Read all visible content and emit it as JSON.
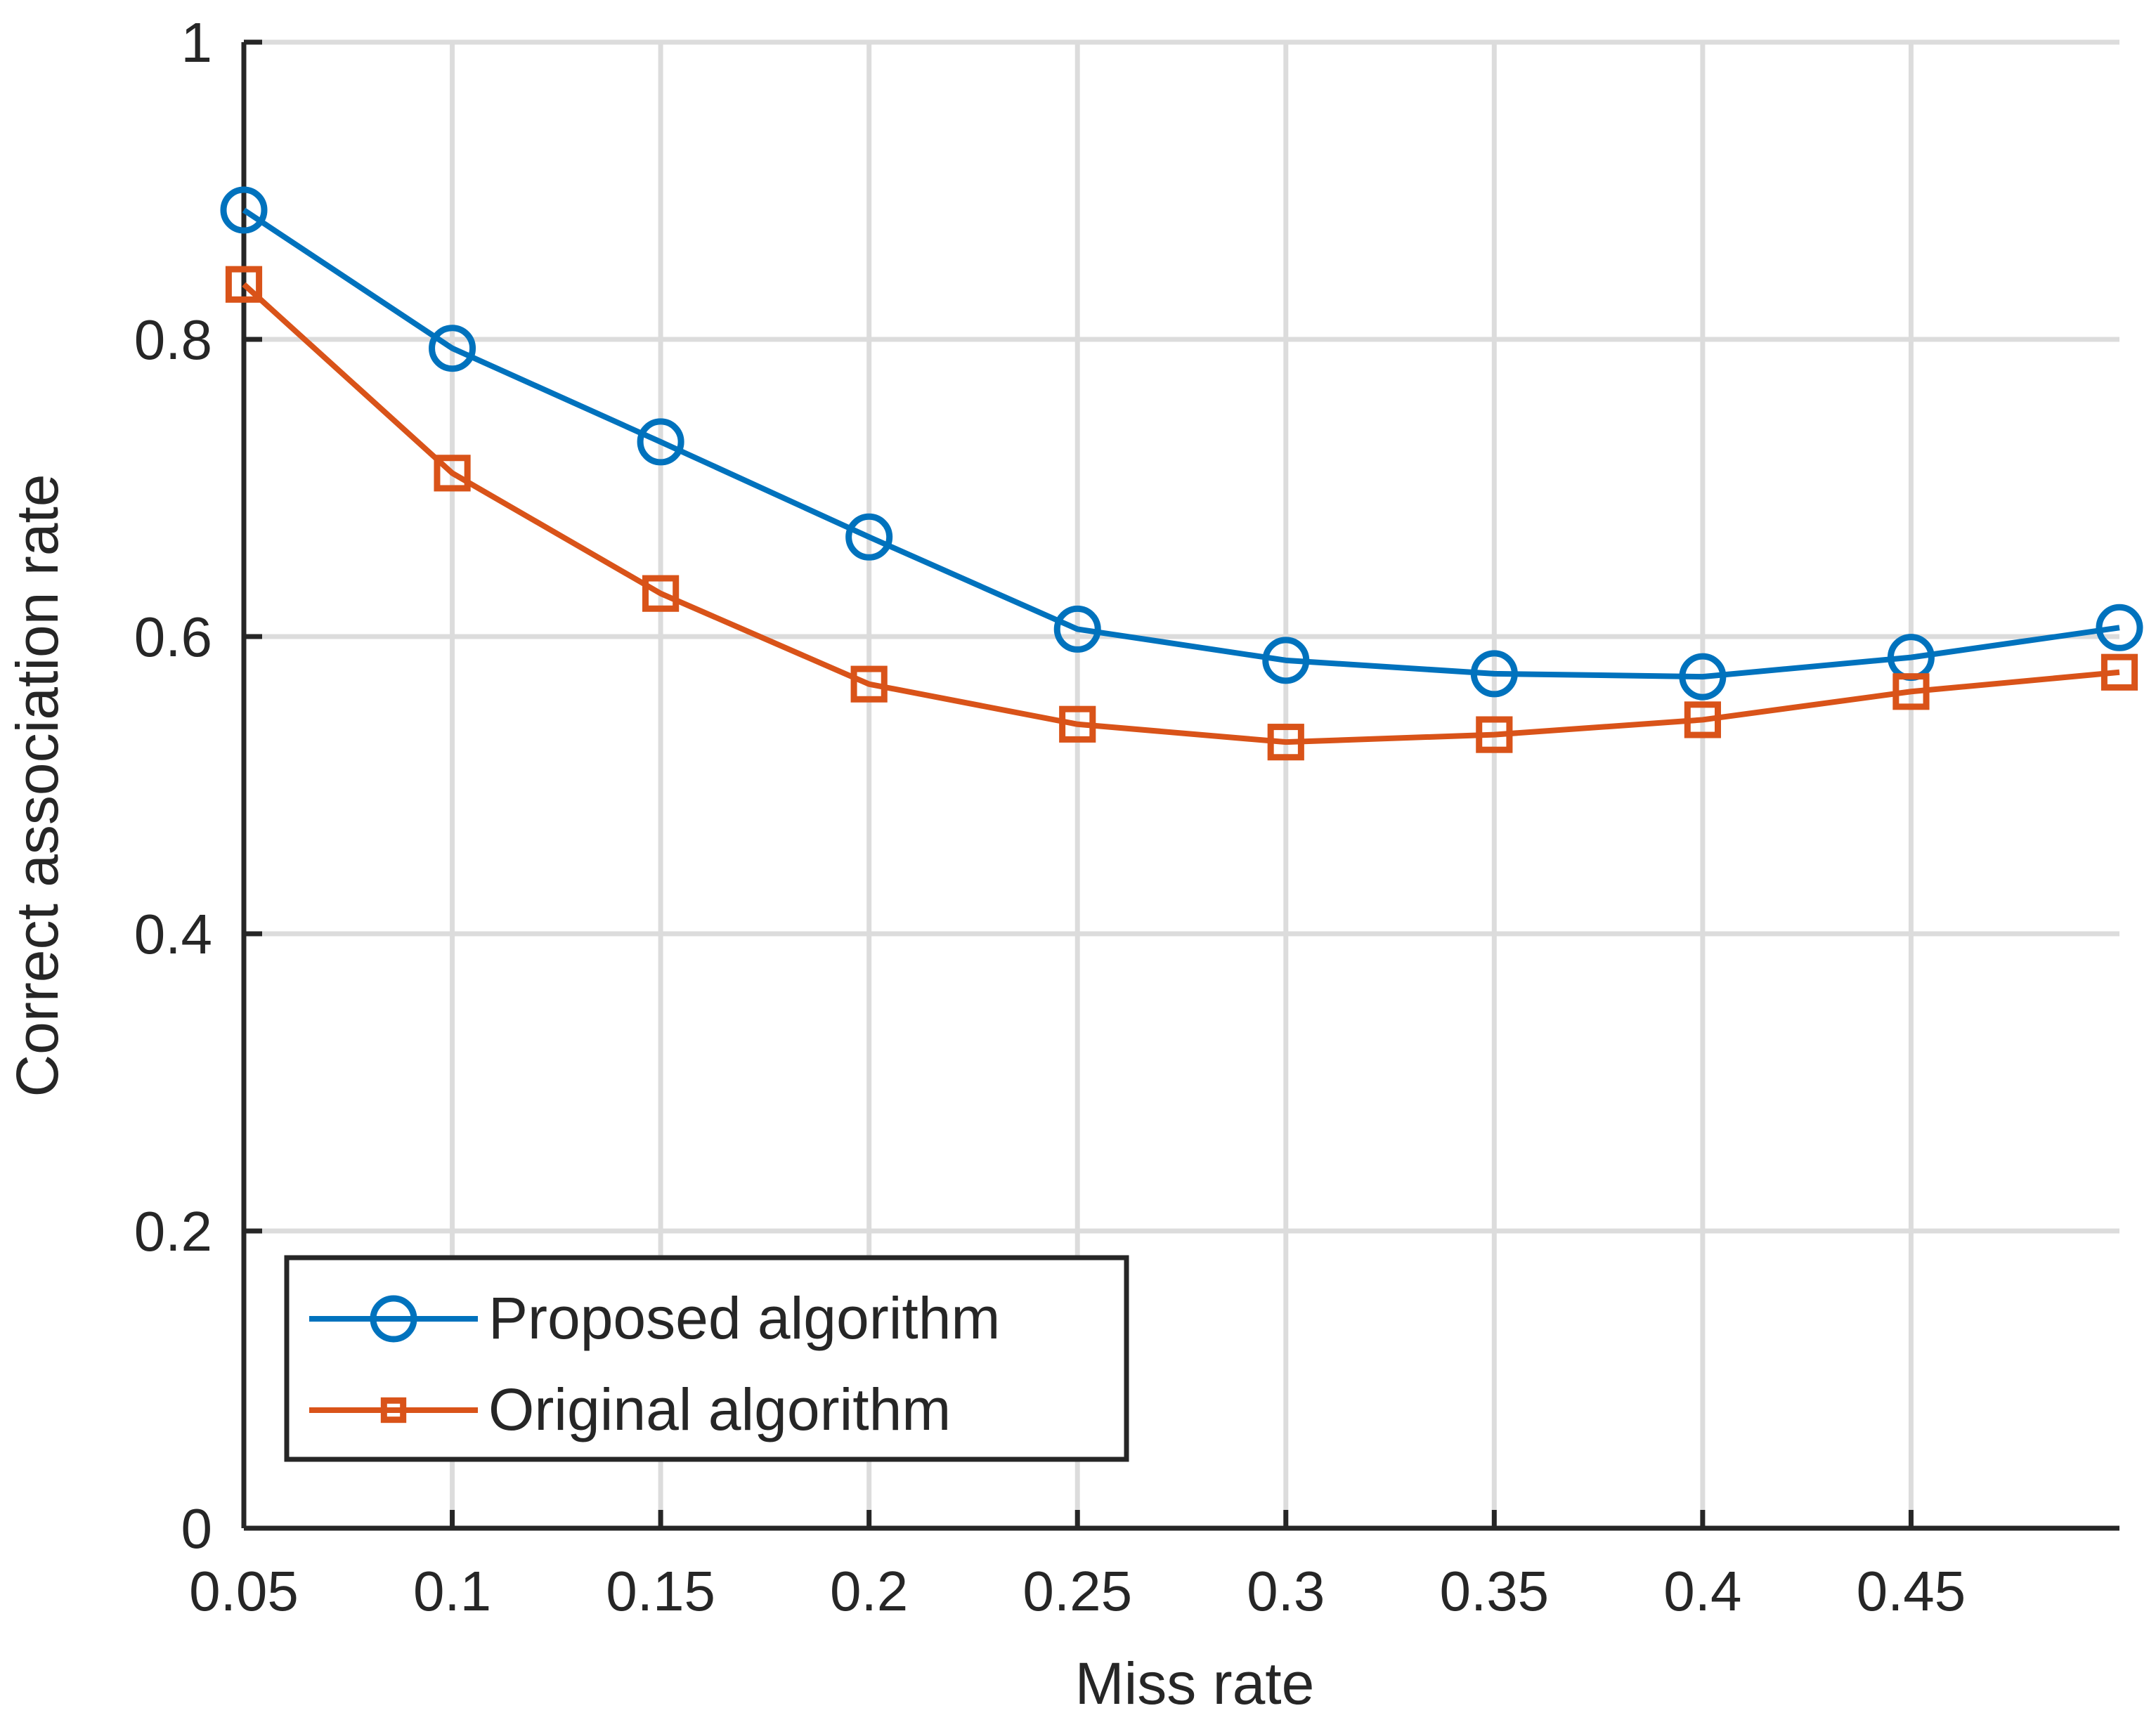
{
  "chart_data": {
    "type": "line",
    "title": "",
    "xlabel": "Miss rate",
    "ylabel": "Correct association rate",
    "x": [
      0.05,
      0.1,
      0.15,
      0.2,
      0.25,
      0.3,
      0.35,
      0.4,
      0.45,
      0.5
    ],
    "xlim": [
      0.05,
      0.5
    ],
    "ylim": [
      0,
      1
    ],
    "x_ticks": [
      0.05,
      0.1,
      0.15,
      0.2,
      0.25,
      0.3,
      0.35,
      0.4,
      0.45
    ],
    "x_tick_labels": [
      "0.05",
      "0.1",
      "0.15",
      "0.2",
      "0.25",
      "0.3",
      "0.35",
      "0.4",
      "0.45"
    ],
    "y_ticks": [
      0,
      0.2,
      0.4,
      0.6,
      0.8,
      1
    ],
    "y_tick_labels": [
      "0",
      "0.2",
      "0.4",
      "0.6",
      "0.8",
      "1"
    ],
    "grid": true,
    "legend_position": "bottom-left",
    "series": [
      {
        "name": "Proposed algorithm",
        "marker": "circle",
        "color": "#0072BD",
        "values": [
          0.887,
          0.794,
          0.731,
          0.667,
          0.605,
          0.584,
          0.575,
          0.573,
          0.586,
          0.606
        ]
      },
      {
        "name": "Original algorithm",
        "marker": "square",
        "color": "#D95319",
        "values": [
          0.837,
          0.71,
          0.629,
          0.568,
          0.541,
          0.529,
          0.534,
          0.544,
          0.563,
          0.576
        ]
      }
    ]
  }
}
